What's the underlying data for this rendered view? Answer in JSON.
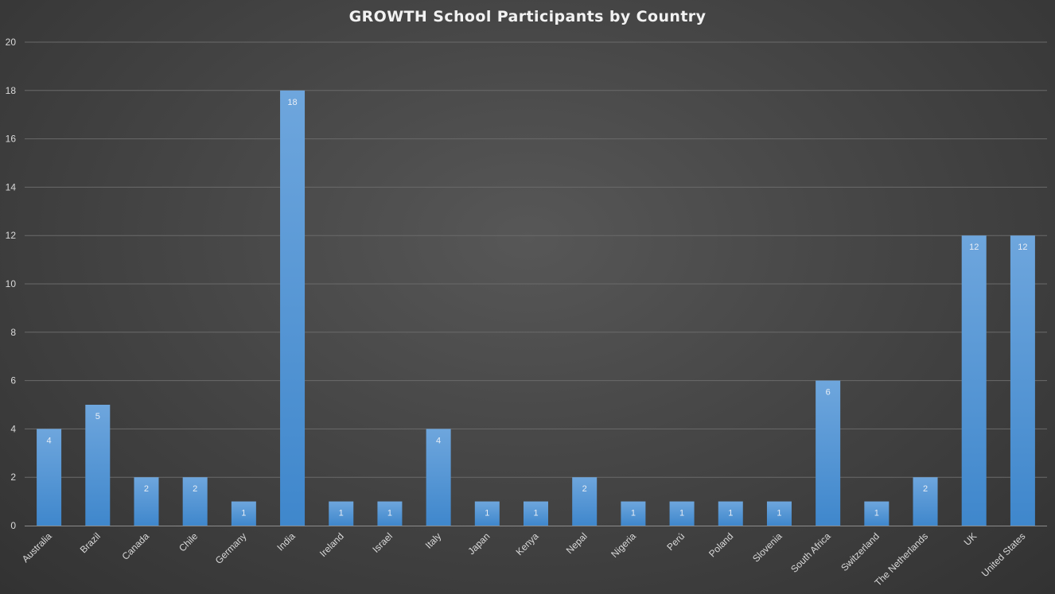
{
  "chart_data": {
    "type": "bar",
    "title": "GROWTH School Participants by Country",
    "xlabel": "",
    "ylabel": "",
    "ylim": [
      0,
      20
    ],
    "yticks": [
      0,
      2,
      4,
      6,
      8,
      10,
      12,
      14,
      16,
      18,
      20
    ],
    "grid": true,
    "legend": "none",
    "bar_color": "#5b9bd5",
    "categories": [
      "Australia",
      "Brazil",
      "Canada",
      "Chile",
      "Germany",
      "India",
      "Ireland",
      "Israel",
      "Italy",
      "Japan",
      "Kenya",
      "Nepal",
      "Nigeria",
      "Perú",
      "Poland",
      "Slovenia",
      "South Africa",
      "Switzerland",
      "The Netherlands",
      "UK",
      "United States"
    ],
    "values": [
      4,
      5,
      2,
      2,
      1,
      18,
      1,
      1,
      4,
      1,
      1,
      2,
      1,
      1,
      1,
      1,
      6,
      1,
      2,
      12,
      12
    ],
    "data_labels": true
  }
}
